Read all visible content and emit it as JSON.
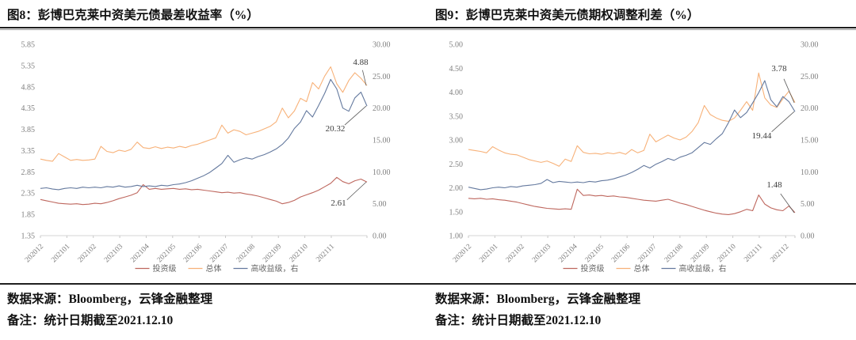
{
  "footer": {
    "source": "数据来源：Bloomberg，云锋金融整理",
    "remark": "备注：统计日期截至2021.12.10"
  },
  "colors": {
    "investment_grade": "#BE675E",
    "overall": "#F7B178",
    "high_yield": "#64799E",
    "axis_text": "#7f7f7f",
    "annotation_text": "#3c3c3c",
    "leader_line": "#595959",
    "baseline": "#d4d4d4",
    "legend_text": "#666666"
  },
  "chart_data": [
    {
      "type": "line",
      "title": "图8：彭博巴克莱中资美元债最差收益率（%）",
      "months_total": 12.35,
      "x_labels": [
        "202012",
        "202101",
        "202102",
        "202103",
        "202104",
        "202105",
        "202106",
        "202107",
        "202108",
        "202109",
        "202110",
        "202111"
      ],
      "left_axis": {
        "min": 1.35,
        "max": 5.85,
        "ticks": [
          "5.85",
          "5.35",
          "4.85",
          "4.35",
          "3.85",
          "3.35",
          "2.85",
          "2.35",
          "1.85",
          "1.35"
        ]
      },
      "right_axis": {
        "min": 0,
        "max": 30,
        "ticks": [
          "30.00",
          "25.00",
          "20.00",
          "15.00",
          "10.00",
          "5.00",
          "0.00"
        ]
      },
      "series": [
        {
          "name": "投资级",
          "color": "#BE675E",
          "axis": "left",
          "annotation": {
            "label": "2.61",
            "dx": -36,
            "dy": 30
          },
          "values": [
            2.2,
            2.17,
            2.14,
            2.11,
            2.1,
            2.09,
            2.1,
            2.08,
            2.09,
            2.11,
            2.1,
            2.13,
            2.17,
            2.22,
            2.26,
            2.3,
            2.36,
            2.55,
            2.44,
            2.46,
            2.44,
            2.45,
            2.46,
            2.44,
            2.45,
            2.43,
            2.44,
            2.42,
            2.4,
            2.38,
            2.36,
            2.37,
            2.35,
            2.36,
            2.33,
            2.31,
            2.28,
            2.24,
            2.2,
            2.16,
            2.1,
            2.13,
            2.18,
            2.26,
            2.31,
            2.36,
            2.42,
            2.5,
            2.58,
            2.72,
            2.62,
            2.57,
            2.64,
            2.68,
            2.61
          ]
        },
        {
          "name": "总体",
          "color": "#F7B178",
          "axis": "left",
          "annotation": {
            "label": "4.88",
            "dx": -8,
            "dy": -26
          },
          "values": [
            3.15,
            3.12,
            3.1,
            3.28,
            3.2,
            3.12,
            3.14,
            3.12,
            3.13,
            3.15,
            3.45,
            3.33,
            3.3,
            3.36,
            3.33,
            3.38,
            3.55,
            3.42,
            3.4,
            3.44,
            3.4,
            3.43,
            3.41,
            3.45,
            3.42,
            3.47,
            3.5,
            3.55,
            3.6,
            3.65,
            3.95,
            3.76,
            3.84,
            3.8,
            3.72,
            3.76,
            3.8,
            3.86,
            3.92,
            4.03,
            4.35,
            4.12,
            4.28,
            4.58,
            4.5,
            4.95,
            4.8,
            5.1,
            5.32,
            4.92,
            4.72,
            5.0,
            5.18,
            5.05,
            4.88
          ]
        },
        {
          "name": "高收益级，右",
          "color": "#64799E",
          "axis": "right",
          "annotation": {
            "label": "20.32",
            "dx": -40,
            "dy": 32
          },
          "values": [
            7.4,
            7.5,
            7.3,
            7.2,
            7.4,
            7.5,
            7.4,
            7.6,
            7.5,
            7.6,
            7.5,
            7.7,
            7.6,
            7.8,
            7.6,
            7.7,
            7.9,
            7.7,
            7.8,
            7.7,
            7.9,
            7.8,
            8.0,
            8.1,
            8.3,
            8.6,
            9.0,
            9.4,
            9.9,
            10.6,
            11.3,
            12.6,
            11.5,
            11.9,
            12.2,
            12.0,
            12.4,
            12.7,
            13.1,
            13.6,
            14.3,
            15.3,
            16.8,
            17.8,
            19.6,
            18.6,
            20.4,
            22.3,
            24.5,
            23.0,
            20.0,
            19.5,
            21.6,
            22.5,
            20.32
          ]
        }
      ]
    },
    {
      "type": "line",
      "title": "图9：彭博巴克莱中资美元债期权调整利差（%）",
      "months_total": 12.35,
      "x_labels": [
        "202012",
        "202101",
        "202102",
        "202103",
        "202104",
        "202105",
        "202106",
        "202107",
        "202108",
        "202109",
        "202110",
        "202111",
        "202112"
      ],
      "left_axis": {
        "min": 1.0,
        "max": 5.0,
        "ticks": [
          "5.00",
          "4.50",
          "4.00",
          "3.50",
          "3.00",
          "2.50",
          "2.00",
          "1.50",
          "1.00"
        ]
      },
      "right_axis": {
        "min": 0,
        "max": 30,
        "ticks": [
          "30.00",
          "25.00",
          "20.00",
          "15.00",
          "10.00",
          "5.00",
          "0.00"
        ]
      },
      "series": [
        {
          "name": "投资级",
          "color": "#BE675E",
          "axis": "left",
          "annotation": {
            "label": "1.48",
            "dx": -26,
            "dy": -32
          },
          "values": [
            1.78,
            1.77,
            1.78,
            1.76,
            1.77,
            1.75,
            1.74,
            1.72,
            1.7,
            1.67,
            1.64,
            1.61,
            1.59,
            1.57,
            1.56,
            1.55,
            1.56,
            1.55,
            1.97,
            1.84,
            1.85,
            1.83,
            1.84,
            1.82,
            1.83,
            1.81,
            1.8,
            1.78,
            1.76,
            1.74,
            1.73,
            1.72,
            1.74,
            1.76,
            1.72,
            1.68,
            1.65,
            1.61,
            1.57,
            1.53,
            1.5,
            1.47,
            1.45,
            1.44,
            1.46,
            1.5,
            1.55,
            1.52,
            1.85,
            1.66,
            1.58,
            1.54,
            1.52,
            1.62,
            1.48
          ]
        },
        {
          "name": "总体",
          "color": "#F7B178",
          "axis": "left",
          "annotation": {
            "label": "3.78",
            "dx": -20,
            "dy": -40
          },
          "values": [
            2.8,
            2.78,
            2.76,
            2.73,
            2.86,
            2.79,
            2.73,
            2.7,
            2.69,
            2.64,
            2.59,
            2.56,
            2.53,
            2.56,
            2.51,
            2.45,
            2.6,
            2.55,
            2.88,
            2.74,
            2.71,
            2.72,
            2.7,
            2.73,
            2.71,
            2.74,
            2.7,
            2.8,
            2.73,
            2.78,
            3.12,
            2.96,
            3.03,
            3.1,
            3.04,
            3.0,
            3.06,
            3.18,
            3.36,
            3.72,
            3.53,
            3.46,
            3.41,
            3.39,
            3.46,
            3.62,
            3.8,
            3.62,
            4.4,
            3.88,
            3.73,
            3.68,
            3.86,
            4.02,
            3.78
          ]
        },
        {
          "name": "高收益级，右",
          "color": "#64799E",
          "axis": "right",
          "annotation": {
            "label": "19.44",
            "dx": -42,
            "dy": 34
          },
          "values": [
            7.6,
            7.4,
            7.2,
            7.3,
            7.5,
            7.6,
            7.5,
            7.7,
            7.6,
            7.8,
            7.9,
            8.0,
            8.2,
            8.8,
            8.3,
            8.5,
            8.4,
            8.3,
            8.4,
            8.3,
            8.5,
            8.4,
            8.6,
            8.7,
            8.9,
            9.2,
            9.5,
            9.9,
            10.4,
            11.0,
            10.6,
            11.2,
            11.6,
            12.1,
            11.8,
            12.3,
            12.6,
            13.0,
            13.8,
            14.6,
            14.3,
            15.2,
            16.0,
            17.7,
            19.7,
            18.5,
            19.3,
            20.8,
            22.4,
            24.3,
            21.3,
            20.2,
            21.8,
            21.0,
            19.44
          ]
        }
      ]
    }
  ]
}
